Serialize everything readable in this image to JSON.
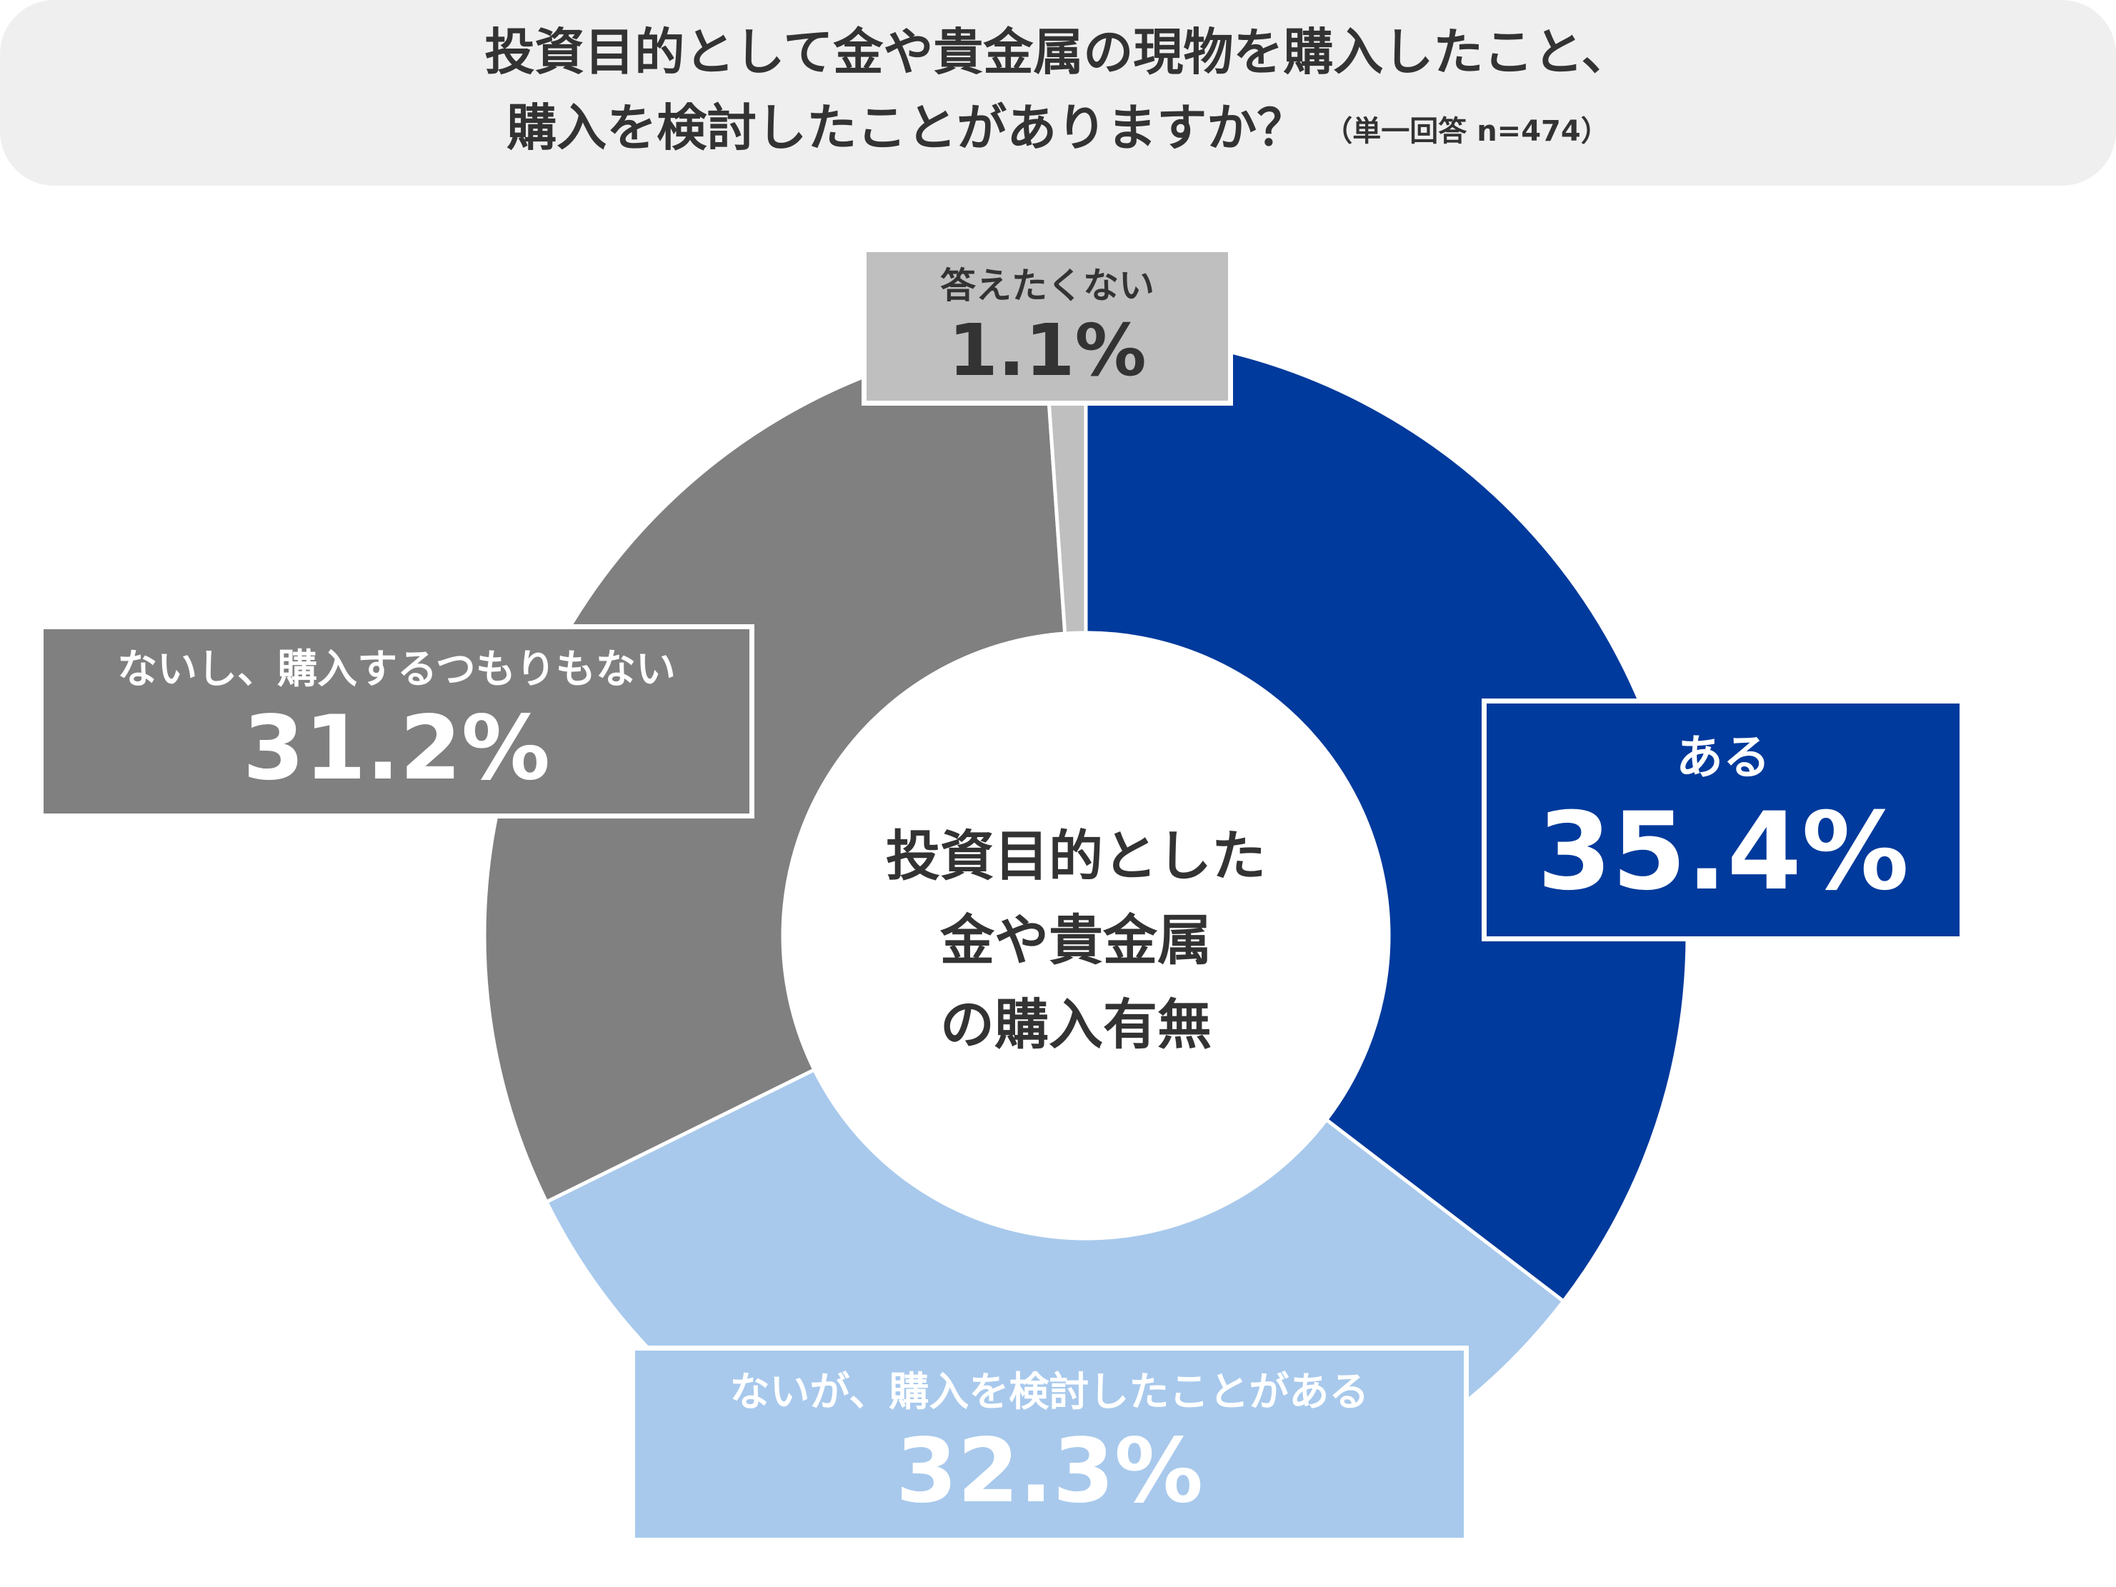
{
  "title": {
    "line1": "投資目的として金や貴金属の現物を購入したこと、",
    "line2": "購入を検討したことがありますか？",
    "note": "（単一回答 n=474）"
  },
  "center_label": {
    "line1": "投資目的とした",
    "line2": "金や貴金属",
    "line3": "の購入有無"
  },
  "chart_data": {
    "type": "pie",
    "variant": "donut",
    "title": "投資目的として金や貴金属の現物を購入したこと、購入を検討したことがありますか？",
    "note": "（単一回答 n=474）",
    "center_text": "投資目的とした金や貴金属の購入有無",
    "unit": "%",
    "categories": [
      "ある",
      "ないが、購入を検討したことがある",
      "ないし、購入するつもりもない",
      "答えたくない"
    ],
    "values": [
      35.4,
      32.3,
      31.2,
      1.1
    ],
    "display_values": [
      "35.4%",
      "32.3%",
      "31.2%",
      "1.1%"
    ],
    "colors": [
      "#003a9c",
      "#a8c9ec",
      "#808080",
      "#bfbfbf"
    ],
    "start_angle": "12 o'clock",
    "direction": "clockwise",
    "legend": "none (callout labels)"
  }
}
